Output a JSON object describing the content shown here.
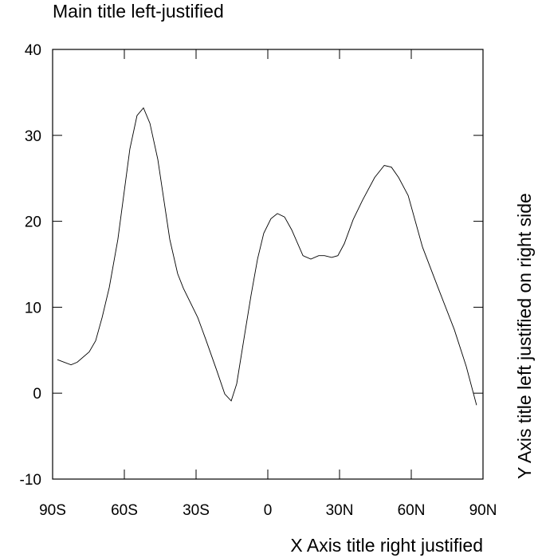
{
  "chart_data": {
    "type": "line",
    "title": "Main title left-justified",
    "x_label": "X Axis title right justified",
    "y_label": "Y Axis title left justified on right side",
    "x": [
      -88,
      -82.3,
      -79.7,
      -74.7,
      -72,
      -69.3,
      -66.3,
      -62.7,
      -57.7,
      -54.7,
      -52,
      -49.3,
      -46,
      -41,
      -37.7,
      -35.3,
      -29.3,
      -26,
      -21.3,
      -18,
      -15.3,
      -13,
      -9.7,
      -7,
      -4.3,
      -1.7,
      1.3,
      4,
      7,
      10,
      14.7,
      18,
      21.3,
      23.7,
      26.7,
      29.3,
      32,
      35.7,
      39.7,
      44.7,
      48.7,
      51.7,
      54.7,
      58.7,
      64.7,
      71.3,
      78,
      83,
      87.3
    ],
    "series": [
      {
        "color": "#000000",
        "values": [
          3.9,
          3.3,
          3.6,
          4.8,
          6.1,
          8.8,
          12.3,
          17.9,
          28.4,
          32.3,
          33.2,
          31.4,
          27.2,
          17.9,
          13.9,
          12.2,
          8.8,
          6.3,
          2.6,
          -0.1,
          -0.9,
          1.1,
          6.8,
          11.4,
          15.6,
          18.6,
          20.3,
          20.9,
          20.5,
          19.0,
          16.0,
          15.6,
          16.0,
          16.0,
          15.8,
          16.0,
          17.4,
          20.2,
          22.5,
          25.1,
          26.5,
          26.3,
          25.1,
          23.0,
          17.0,
          12.2,
          7.4,
          3.1,
          -1.4
        ]
      }
    ],
    "xlim": [
      -90,
      90
    ],
    "xticks": [
      {
        "value": -90,
        "label": "90S"
      },
      {
        "value": -60,
        "label": "60S"
      },
      {
        "value": -30,
        "label": "30S"
      },
      0,
      {
        "value": 30,
        "label": "30N"
      },
      {
        "value": 60,
        "label": "60N"
      },
      {
        "value": 90,
        "label": "90N"
      }
    ],
    "ylim": [
      -10,
      40
    ],
    "yticks": [
      -10,
      0,
      10,
      20,
      30,
      40
    ]
  }
}
